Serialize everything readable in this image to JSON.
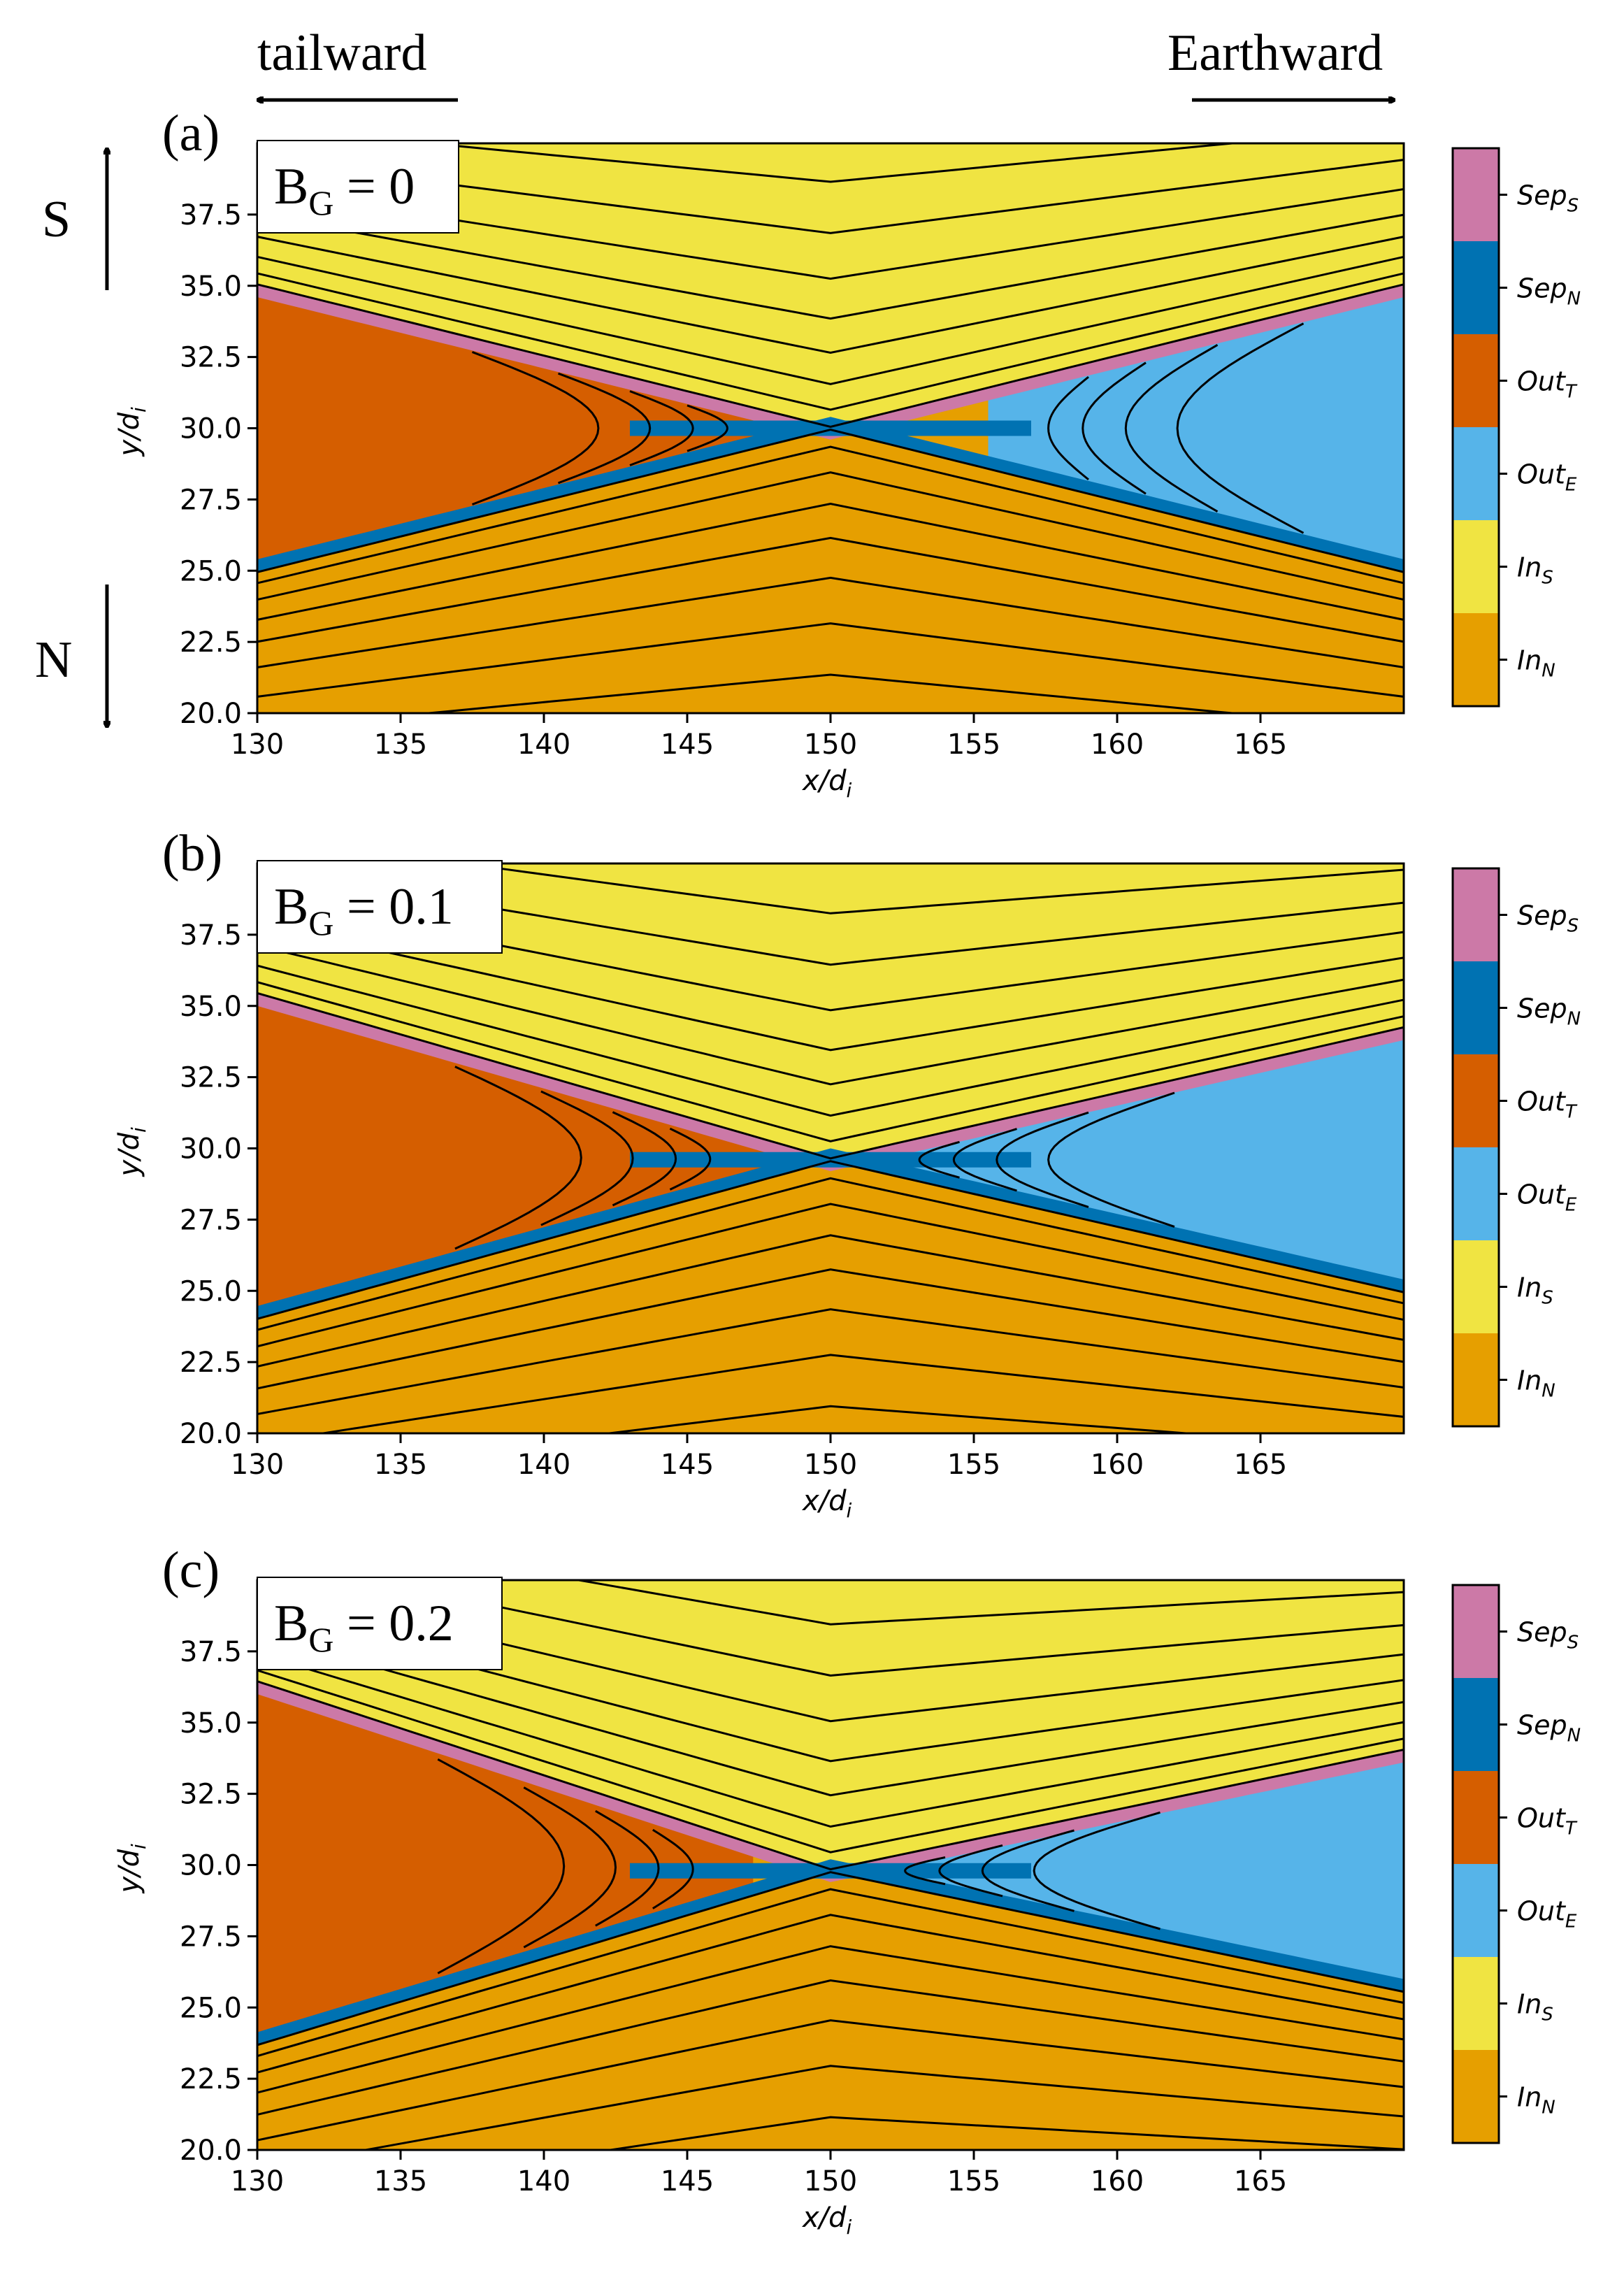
{
  "header": {
    "left_label": "tailward",
    "right_label": "Earthward",
    "top_side_label": "S",
    "bottom_side_label": "N"
  },
  "axes": {
    "xlabel": "x/d",
    "xlabel_sub": "i",
    "ylabel": "y/d",
    "ylabel_sub": "i",
    "xlim": [
      130,
      170
    ],
    "ylim": [
      20,
      40
    ],
    "xticks": [
      "130",
      "135",
      "140",
      "145",
      "150",
      "155",
      "160",
      "165"
    ],
    "yticks": [
      "20.0",
      "22.5",
      "25.0",
      "27.5",
      "30.0",
      "32.5",
      "35.0",
      "37.5"
    ]
  },
  "legend": [
    {
      "base": "Sep",
      "sub": "S",
      "color": "#cc79a7"
    },
    {
      "base": "Sep",
      "sub": "N",
      "color": "#0072b2"
    },
    {
      "base": "Out",
      "sub": "T",
      "color": "#d55e00"
    },
    {
      "base": "Out",
      "sub": "E",
      "color": "#56b4e9"
    },
    {
      "base": "In",
      "sub": "S",
      "color": "#f0e442"
    },
    {
      "base": "In",
      "sub": "N",
      "color": "#e69f00"
    }
  ],
  "chart_data": [
    {
      "type": "heatmap",
      "panel_label": "(a)",
      "title_base": "B",
      "title_sub": "G",
      "title_value": " = 0",
      "guide_field": 0,
      "xlim": [
        130,
        170
      ],
      "ylim": [
        20,
        40
      ],
      "x_point_x": 150,
      "x_point_y": 30,
      "regions": [
        {
          "label": "In_S",
          "location": "above upper separatrix",
          "color": "#f0e442"
        },
        {
          "label": "In_N",
          "location": "below lower separatrix",
          "color": "#e69f00"
        },
        {
          "label": "Out_T",
          "x_range": [
            130,
            142
          ],
          "y_range": [
            26,
            33
          ],
          "color": "#d55e00"
        },
        {
          "label": "Out_E",
          "x_range": [
            158,
            170
          ],
          "y_range": [
            26,
            33
          ],
          "color": "#56b4e9"
        },
        {
          "label": "Sep_S",
          "location": "upper separatrix layer",
          "color": "#cc79a7"
        },
        {
          "label": "Sep_N",
          "location": "lower separatrix layer",
          "color": "#0072b2"
        }
      ]
    },
    {
      "type": "heatmap",
      "panel_label": "(b)",
      "title_base": "B",
      "title_sub": "G",
      "title_value": " = 0.1",
      "guide_field": 0.1,
      "xlim": [
        130,
        170
      ],
      "ylim": [
        20,
        40
      ],
      "x_point_x": 150,
      "x_point_y": 29.6,
      "regions": [
        {
          "label": "In_S",
          "location": "above upper separatrix",
          "color": "#f0e442"
        },
        {
          "label": "In_N",
          "location": "below lower separatrix",
          "color": "#e69f00"
        },
        {
          "label": "Out_T",
          "x_range": [
            130,
            147
          ],
          "y_range": [
            26,
            33.5
          ],
          "color": "#d55e00"
        },
        {
          "label": "Out_E",
          "x_range": [
            154,
            170
          ],
          "y_range": [
            26,
            33.5
          ],
          "color": "#56b4e9"
        },
        {
          "label": "Sep_S",
          "location": "upper separatrix layer",
          "color": "#cc79a7"
        },
        {
          "label": "Sep_N",
          "location": "lower separatrix layer",
          "color": "#0072b2"
        }
      ]
    },
    {
      "type": "heatmap",
      "panel_label": "(c)",
      "title_base": "B",
      "title_sub": "G",
      "title_value": " = 0.2",
      "guide_field": 0.2,
      "xlim": [
        130,
        170
      ],
      "ylim": [
        20,
        40
      ],
      "x_point_x": 150,
      "x_point_y": 29.8,
      "regions": [
        {
          "label": "In_S",
          "location": "above upper separatrix",
          "color": "#f0e442"
        },
        {
          "label": "In_N",
          "location": "below lower separatrix",
          "color": "#e69f00"
        },
        {
          "label": "Out_T",
          "x_range": [
            130,
            147
          ],
          "y_range": [
            27,
            34
          ],
          "color": "#d55e00"
        },
        {
          "label": "Out_E",
          "x_range": [
            153,
            170
          ],
          "y_range": [
            26,
            33.5
          ],
          "color": "#56b4e9"
        },
        {
          "label": "Sep_S",
          "location": "upper separatrix layer",
          "color": "#cc79a7"
        },
        {
          "label": "Sep_N",
          "location": "lower separatrix layer",
          "color": "#0072b2"
        }
      ]
    }
  ]
}
